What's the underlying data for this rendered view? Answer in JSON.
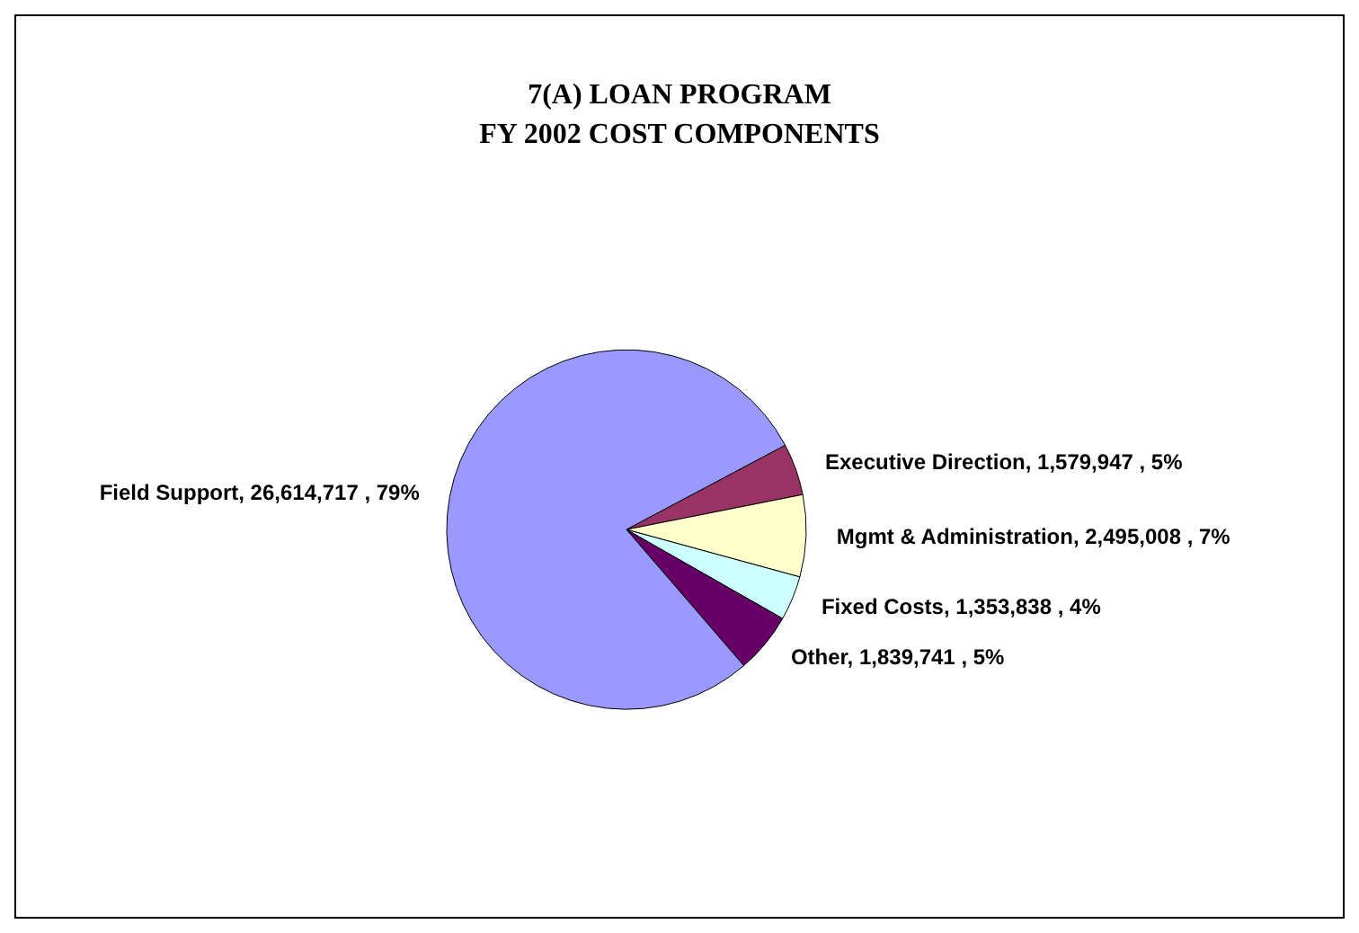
{
  "chart_data": {
    "type": "pie",
    "title": "7(A) LOAN PROGRAM\nFY 2002 COST COMPONENTS",
    "categories": [
      "Executive Direction",
      "Mgmt & Administration",
      "Fixed Costs",
      "Other",
      "Field Support"
    ],
    "values": [
      1579947,
      2495008,
      1353838,
      1839741,
      26614717
    ],
    "colors": [
      "#993366",
      "#ffffcc",
      "#ccffff",
      "#660066",
      "#9999ff"
    ],
    "value_labels": [
      "1,579,947 , 5%",
      "2,495,008 , 7%",
      "1,353,838 , 4%",
      "1,839,741 , 5%",
      "26,614,717 , 79%"
    ],
    "legend": false
  }
}
